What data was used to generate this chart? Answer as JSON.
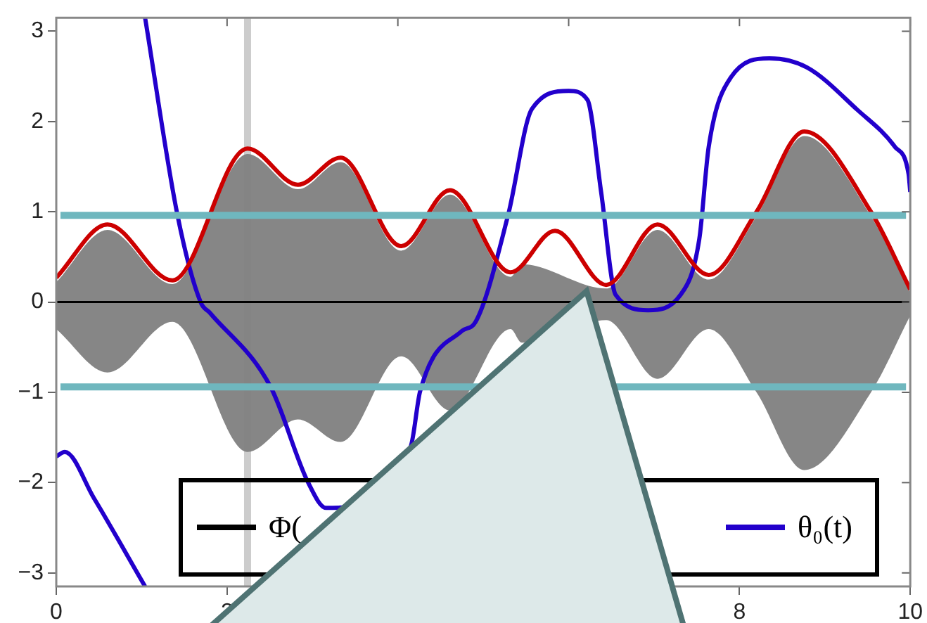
{
  "chart_data": {
    "type": "line",
    "xlim": [
      0,
      10
    ],
    "ylim": [
      -3.15,
      3.15
    ],
    "xticks": [
      0,
      2,
      {
        "value": 4,
        "label": null
      },
      {
        "value": 6,
        "label": null
      },
      8,
      10
    ],
    "yticks": [
      -3,
      -2,
      -1,
      0,
      1,
      2,
      3
    ],
    "grid": false,
    "legend": "bottom",
    "marker": "none",
    "line_style": "solid",
    "series": [
      {
        "name": "Φ(",
        "color": "#000000",
        "x": [
          0,
          0.6,
          1.36,
          2.24,
          2.83,
          3.33,
          4.04,
          4.61,
          5.32,
          5.45,
          6.44,
          7.04,
          7.64,
          8.2,
          8.76,
          9.54,
          10
        ],
        "values": [
          0,
          0,
          0,
          0,
          0,
          0,
          0,
          0,
          0,
          0,
          0,
          0,
          0,
          0,
          0,
          0,
          0
        ],
        "upper": [
          0.22,
          0.8,
          0.2,
          1.64,
          1.25,
          1.55,
          0.57,
          1.19,
          0.28,
          0.42,
          0.15,
          0.8,
          0.25,
          0.95,
          1.84,
          0.95,
          0.1
        ],
        "lower": [
          -0.3,
          -0.78,
          -0.22,
          -1.66,
          -1.3,
          -1.55,
          -0.6,
          -1.2,
          -0.3,
          -0.45,
          -0.2,
          -0.85,
          -0.3,
          -1.0,
          -1.86,
          -1.0,
          -0.15
        ]
      },
      {
        "color": "#cc0000",
        "x": [
          0,
          0.6,
          1.36,
          2.24,
          2.83,
          3.33,
          4.04,
          4.61,
          5.32,
          5.84,
          6.44,
          7.04,
          7.64,
          8.2,
          8.76,
          9.54,
          10
        ],
        "values": [
          0.27,
          0.86,
          0.24,
          1.7,
          1.3,
          1.6,
          0.62,
          1.24,
          0.33,
          0.79,
          0.19,
          0.86,
          0.3,
          1.0,
          1.89,
          1.0,
          0.14
        ]
      },
      {
        "color": "#2200cc",
        "x": [
          0,
          0.1,
          0.44,
          1.04
        ],
        "values": [
          -1.71,
          -1.66,
          -2.17,
          -3.15
        ]
      },
      {
        "name": "θ₀(t)",
        "color": "#2200cc",
        "x": [
          1.04,
          1.42,
          1.69,
          1.8,
          2.51,
          2.95,
          3.16,
          4.15,
          4.26,
          4.75,
          4.91,
          5.29,
          5.57,
          6.0,
          6.22,
          6.38,
          6.55,
          6.93,
          7.31,
          7.53,
          7.64,
          7.9,
          8.35,
          8.79,
          9.38,
          9.82,
          9.98,
          10
        ],
        "values": [
          3.15,
          0.96,
          0,
          -0.12,
          -0.94,
          -2.0,
          -2.28,
          -1.6,
          -0.99,
          -0.32,
          -0.22,
          0.96,
          2.14,
          2.34,
          2.24,
          1.22,
          0.08,
          -0.09,
          0.08,
          0.7,
          1.72,
          2.49,
          2.7,
          2.6,
          2.13,
          1.72,
          1.42,
          1.22
        ]
      }
    ],
    "ref_lines": [
      {
        "axis": "y",
        "value": 0.96,
        "color": "#6fb7be"
      },
      {
        "axis": "y",
        "value": -0.94,
        "color": "#6fb7be"
      },
      {
        "axis": "x",
        "value": 2.24,
        "color": "#cccccc"
      }
    ]
  }
}
